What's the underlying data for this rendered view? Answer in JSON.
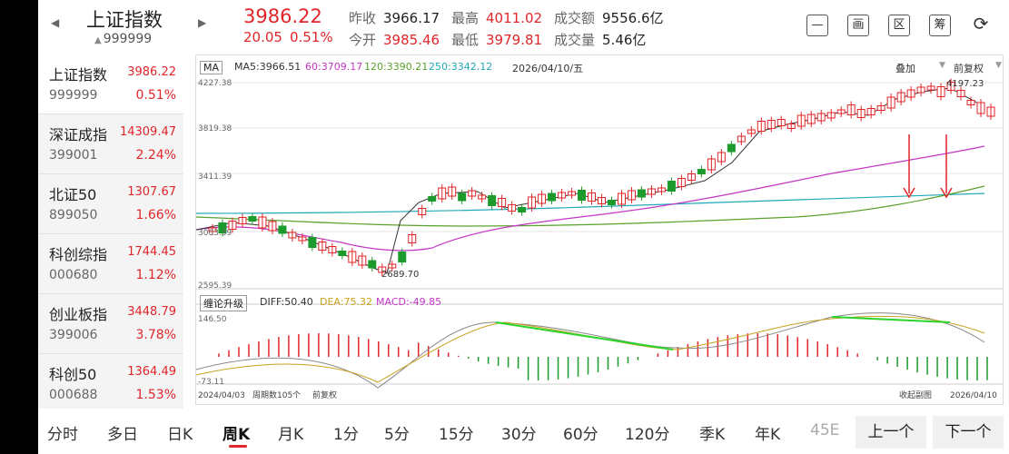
{
  "header": {
    "index_name": "上证指数",
    "index_code": "999999",
    "price": "3986.22",
    "change": "20.05",
    "change_pct": "0.51%",
    "prev_close_label": "昨收",
    "prev_close": "3966.17",
    "open_label": "今开",
    "open": "3985.46",
    "high_label": "最高",
    "high": "4011.02",
    "low_label": "最低",
    "low": "3979.81",
    "turnover_label": "成交额",
    "turnover": "9556.6亿",
    "volume_label": "成交量",
    "volume": "5.46亿",
    "tools": [
      {
        "icon": "minus-icon",
        "glyph": "—"
      },
      {
        "icon": "picture-icon",
        "glyph": "画"
      },
      {
        "icon": "zone-icon",
        "glyph": "区"
      },
      {
        "icon": "chip-icon",
        "glyph": "筹"
      },
      {
        "icon": "rotate-screen-icon",
        "glyph": "⟳"
      }
    ]
  },
  "sidebar": {
    "items": [
      {
        "name": "上证指数",
        "price": "3986.22",
        "code": "999999",
        "pct": "0.51%"
      },
      {
        "name": "深证成指",
        "price": "14309.47",
        "code": "399001",
        "pct": "2.24%"
      },
      {
        "name": "北证50",
        "price": "1307.67",
        "code": "899050",
        "pct": "1.66%"
      },
      {
        "name": "科创综指",
        "price": "1744.45",
        "code": "000680",
        "pct": "1.12%"
      },
      {
        "name": "创业板指",
        "price": "3448.79",
        "code": "399006",
        "pct": "3.78%"
      },
      {
        "name": "科创50",
        "price": "1364.49",
        "code": "000688",
        "pct": "1.53%"
      }
    ]
  },
  "chart": {
    "ma_button": "MA",
    "ma5": "MA5:3966.51",
    "ma60": "60:3709.17",
    "ma120": "120:3390.21",
    "ma250": "250:3342.12",
    "date": "2026/04/10/五",
    "overlay": "叠加",
    "adjust": "前复权",
    "y_labels": [
      "4227.38",
      "3819.38",
      "3411.39",
      "3003.39",
      "2595.39"
    ],
    "low_mark": "2689.70",
    "high_mark": "4197.23",
    "macd_button": "缠论升级",
    "diff": "DIFF:50.40",
    "dea": "DEA:75.32",
    "macd": "MACD:-49.85",
    "macd_top": "146.50",
    "macd_bottom": "-73.11",
    "start_date": "2024/04/03",
    "period_count": "周期数105个",
    "adjust_mode": "前复权",
    "collapse": "收起副图",
    "end_date": "2026/04/10",
    "colors": {
      "up": "#e0262a",
      "down": "#1c9a2c",
      "ma5": "#333333",
      "ma60": "#c436c6",
      "ma120": "#5aa02c",
      "ma250": "#1fa9b8"
    }
  },
  "tabs": [
    "分时",
    "多日",
    "日K",
    "周K",
    "月K",
    "1分",
    "5分",
    "15分",
    "30分",
    "60分",
    "120分",
    "季K",
    "年K",
    "45E"
  ],
  "selected_tab": "周K",
  "prev_button": "上一个",
  "next_button": "下一个"
}
